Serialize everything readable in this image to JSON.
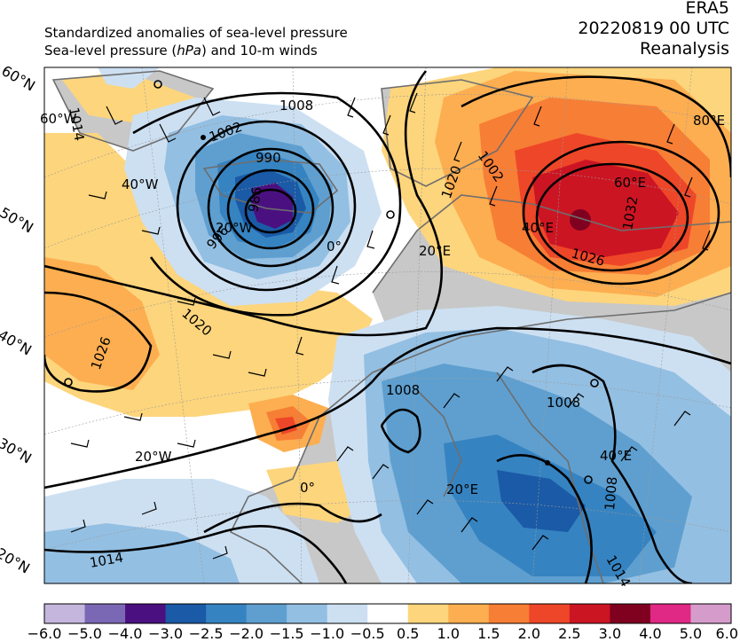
{
  "header": {
    "line1": "Standardized anomalies of sea-level pressure",
    "line2_prefix": "Sea-level pressure (",
    "line2_unit": "hPa",
    "line2_suffix": ") and 10-m winds",
    "dataset": "ERA5",
    "datetime": "20220819 00 UTC",
    "product": "Reanalysis"
  },
  "latitude_labels": [
    "60°N",
    "50°N",
    "40°N",
    "30°N",
    "20°N"
  ],
  "longitude_labels": [
    "60°W",
    "40°W",
    "20°W",
    "0°",
    "20°E",
    "40°E",
    "60°E",
    "80°E",
    "20°W",
    "0°",
    "20°E",
    "40°E"
  ],
  "isobar_labels": [
    "1014",
    "1008",
    "1002",
    "990",
    "986",
    "996",
    "1020",
    "1026",
    "1032",
    "1026",
    "1020",
    "1008",
    "1008",
    "1008",
    "1014",
    "1002",
    "1014"
  ],
  "colorbar": {
    "ticks": [
      "−6.0",
      "−5.0",
      "−4.0",
      "−3.0",
      "−2.5",
      "−2.0",
      "−1.5",
      "−1.0",
      "−0.5",
      "0.5",
      "1.0",
      "1.5",
      "2.0",
      "2.5",
      "3.0",
      "4.0",
      "5.0",
      "6.0"
    ],
    "colors": [
      "#c4b6dc",
      "#7b68b5",
      "#4b1080",
      "#1a5aa6",
      "#3683c1",
      "#5e9fd0",
      "#93bfe2",
      "#cde0f2",
      "#ffffff",
      "#fdd57c",
      "#fdae50",
      "#f77e35",
      "#ee4628",
      "#cc1523",
      "#800020",
      "#e02885",
      "#d59ccb"
    ]
  },
  "map_colors": {
    "land": "#c8c8c8",
    "coast": "#6e6e6e",
    "isobar": "#000000"
  }
}
